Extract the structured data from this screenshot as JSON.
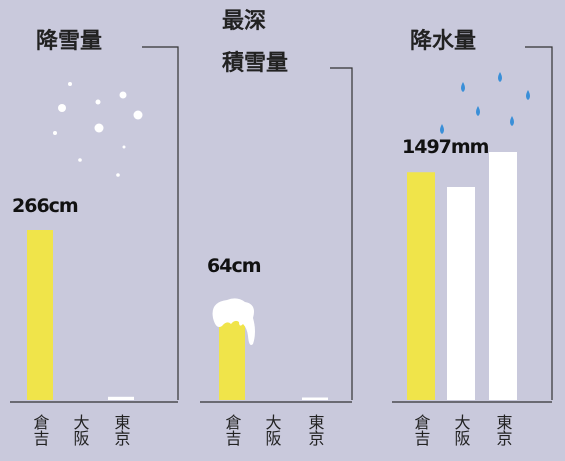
{
  "chart_data": [
    {
      "type": "bar",
      "title": "降雪量",
      "categories": [
        "倉吉",
        "大阪",
        "東京"
      ],
      "values": [
        266,
        0,
        5
      ],
      "value_labels": [
        "266cm",
        null,
        null
      ],
      "colors": [
        "#f0e44a",
        "#ffffff",
        "#ffffff"
      ]
    },
    {
      "type": "bar",
      "title": [
        "最深",
        "積雪量"
      ],
      "categories": [
        "倉吉",
        "大阪",
        "東京"
      ],
      "values": [
        64,
        0,
        2
      ],
      "value_labels": [
        "64cm",
        null,
        null
      ],
      "colors": [
        "#f0e44a",
        "#ffffff",
        "#ffffff"
      ]
    },
    {
      "type": "bar",
      "title": "降水量",
      "categories": [
        "倉吉",
        "大阪",
        "東京"
      ],
      "values": [
        1497,
        1400,
        1630
      ],
      "value_labels": [
        "1497mm",
        null,
        null
      ],
      "colors": [
        "#f0e44a",
        "#ffffff",
        "#ffffff"
      ]
    }
  ]
}
